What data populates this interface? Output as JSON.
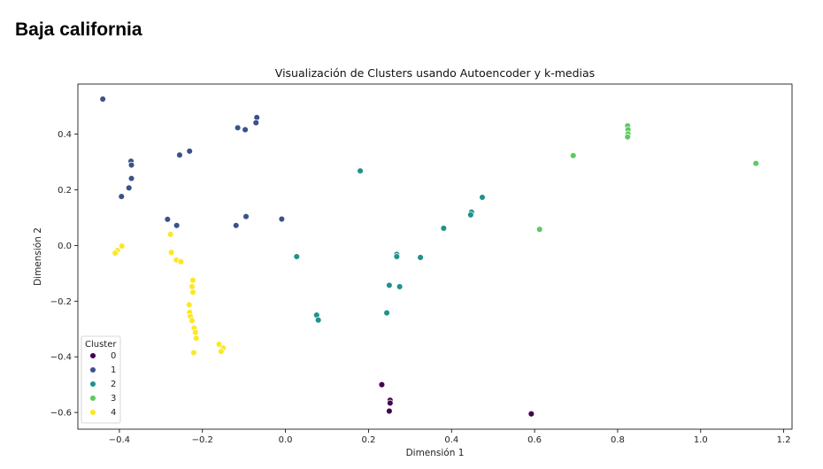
{
  "page": {
    "heading": "Baja california"
  },
  "chart_data": {
    "type": "scatter",
    "title": "Visualización de Clusters usando Autoencoder y k-medias",
    "xlabel": "Dimensión 1",
    "ylabel": "Dimensión 2",
    "xlim": [
      -0.5,
      1.22
    ],
    "ylim": [
      -0.66,
      0.58
    ],
    "xticks": [
      -0.4,
      -0.2,
      0.0,
      0.2,
      0.4,
      0.6,
      0.8,
      1.0,
      1.2
    ],
    "xtick_labels": [
      "−0.4",
      "−0.2",
      "0.0",
      "0.2",
      "0.4",
      "0.6",
      "0.8",
      "1.0",
      "1.2"
    ],
    "yticks": [
      -0.6,
      -0.4,
      -0.2,
      0.0,
      0.2,
      0.4
    ],
    "ytick_labels": [
      "−0.6",
      "−0.4",
      "−0.2",
      "0.0",
      "0.2",
      "0.4"
    ],
    "grid": false,
    "legend": {
      "title": "Cluster",
      "position": "lower-left"
    },
    "series": [
      {
        "name": "0",
        "color": "#440154",
        "points": [
          [
            0.232,
            -0.5
          ],
          [
            0.252,
            -0.556
          ],
          [
            0.252,
            -0.566
          ],
          [
            0.25,
            -0.595
          ],
          [
            0.592,
            -0.605
          ]
        ]
      },
      {
        "name": "1",
        "color": "#3b528b",
        "points": [
          [
            -0.44,
            0.526
          ],
          [
            -0.372,
            0.303
          ],
          [
            -0.371,
            0.289
          ],
          [
            -0.371,
            0.241
          ],
          [
            -0.377,
            0.207
          ],
          [
            -0.395,
            0.176
          ],
          [
            -0.231,
            0.339
          ],
          [
            -0.255,
            0.325
          ],
          [
            -0.115,
            0.423
          ],
          [
            -0.097,
            0.416
          ],
          [
            -0.069,
            0.46
          ],
          [
            -0.071,
            0.441
          ],
          [
            -0.284,
            0.094
          ],
          [
            -0.262,
            0.072
          ],
          [
            -0.095,
            0.104
          ],
          [
            -0.119,
            0.072
          ],
          [
            -0.009,
            0.095
          ]
        ]
      },
      {
        "name": "2",
        "color": "#21918c",
        "points": [
          [
            0.18,
            0.268
          ],
          [
            0.474,
            0.173
          ],
          [
            0.448,
            0.12
          ],
          [
            0.446,
            0.11
          ],
          [
            0.381,
            0.062
          ],
          [
            0.268,
            -0.032
          ],
          [
            0.268,
            -0.04
          ],
          [
            0.325,
            -0.043
          ],
          [
            0.027,
            -0.04
          ],
          [
            0.25,
            -0.143
          ],
          [
            0.275,
            -0.148
          ],
          [
            0.075,
            -0.25
          ],
          [
            0.079,
            -0.268
          ],
          [
            0.244,
            -0.242
          ]
        ]
      },
      {
        "name": "3",
        "color": "#5ec962",
        "points": [
          [
            0.824,
            0.43
          ],
          [
            0.825,
            0.416
          ],
          [
            0.825,
            0.401
          ],
          [
            0.824,
            0.39
          ],
          [
            0.693,
            0.323
          ],
          [
            1.133,
            0.295
          ],
          [
            0.612,
            0.058
          ]
        ]
      },
      {
        "name": "4",
        "color": "#fde725",
        "points": [
          [
            -0.394,
            -0.002
          ],
          [
            -0.405,
            -0.018
          ],
          [
            -0.41,
            -0.027
          ],
          [
            -0.277,
            0.04
          ],
          [
            -0.275,
            -0.025
          ],
          [
            -0.263,
            -0.052
          ],
          [
            -0.252,
            -0.058
          ],
          [
            -0.223,
            -0.125
          ],
          [
            -0.225,
            -0.148
          ],
          [
            -0.223,
            -0.168
          ],
          [
            -0.232,
            -0.213
          ],
          [
            -0.231,
            -0.24
          ],
          [
            -0.229,
            -0.255
          ],
          [
            -0.225,
            -0.27
          ],
          [
            -0.22,
            -0.297
          ],
          [
            -0.217,
            -0.312
          ],
          [
            -0.215,
            -0.333
          ],
          [
            -0.16,
            -0.355
          ],
          [
            -0.15,
            -0.368
          ],
          [
            -0.155,
            -0.381
          ],
          [
            -0.221,
            -0.385
          ]
        ]
      }
    ]
  }
}
